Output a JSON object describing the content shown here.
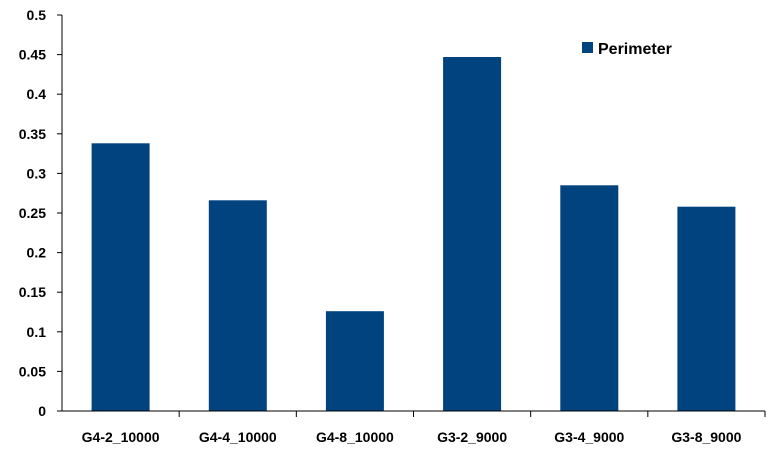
{
  "chart_data": {
    "type": "bar",
    "categories": [
      "G4-2_10000",
      "G4-4_10000",
      "G4-8_10000",
      "G3-2_9000",
      "G3-4_9000",
      "G3-8_9000"
    ],
    "series": [
      {
        "name": "Perimeter",
        "values": [
          0.338,
          0.266,
          0.126,
          0.447,
          0.285,
          0.258
        ],
        "color": "#00437f"
      }
    ],
    "yticks": [
      "0",
      "0.05",
      "0.1",
      "0.15",
      "0.2",
      "0.25",
      "0.3",
      "0.35",
      "0.4",
      "0.45",
      "0.5"
    ],
    "ylim": [
      0,
      0.5
    ],
    "grid": false,
    "legend_position": "top-right"
  }
}
